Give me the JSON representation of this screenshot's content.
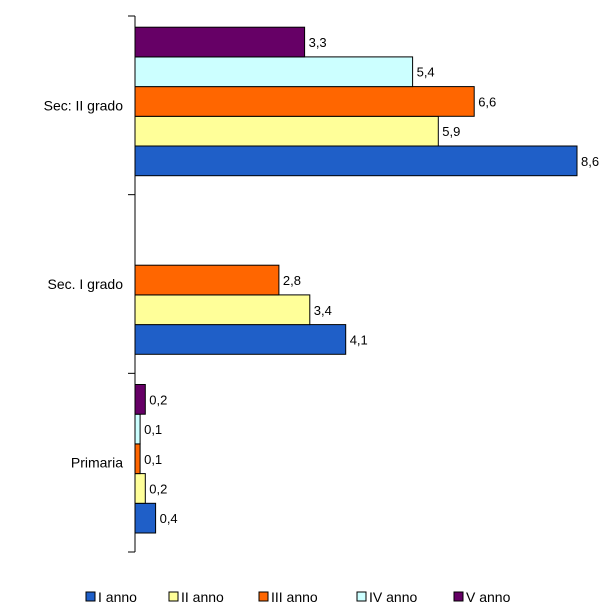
{
  "chart_data": {
    "type": "bar",
    "orientation": "horizontal",
    "categories": [
      "Sec: II grado",
      "Sec. I grado",
      "Primaria"
    ],
    "series": [
      {
        "name": "I anno",
        "color": "#1F5FC8",
        "values": [
          8.6,
          4.1,
          0.4
        ],
        "labels": [
          "8,6",
          "4,1",
          "0,4"
        ]
      },
      {
        "name": "II anno",
        "color": "#FFFF99",
        "values": [
          5.9,
          3.4,
          0.2
        ],
        "labels": [
          "5,9",
          "3,4",
          "0,2"
        ]
      },
      {
        "name": "III anno",
        "color": "#FF6600",
        "values": [
          6.6,
          2.8,
          0.1
        ],
        "labels": [
          "6,6",
          "2,8",
          "0,1"
        ]
      },
      {
        "name": "IV anno",
        "color": "#CCFFFF",
        "values": [
          5.4,
          null,
          0.1
        ],
        "labels": [
          "5,4",
          "",
          "0,1"
        ]
      },
      {
        "name": "V anno",
        "color": "#660066",
        "values": [
          3.3,
          null,
          0.2
        ],
        "labels": [
          "3,3",
          "",
          "0,2"
        ]
      }
    ],
    "xlim": [
      0,
      10
    ],
    "grid": false,
    "legend_position": "bottom"
  }
}
